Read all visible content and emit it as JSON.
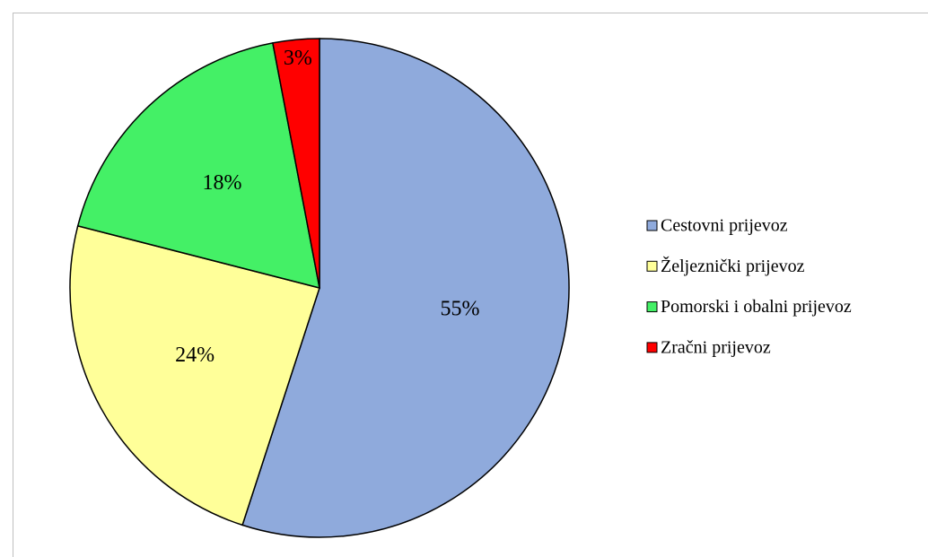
{
  "chart_data": {
    "type": "pie",
    "categories": [
      "Cestovni prijevoz",
      "Željeznički prijevoz",
      "Pomorski i obalni prijevoz",
      "Zračni prijevoz"
    ],
    "values": [
      55,
      24,
      18,
      3
    ],
    "value_labels": [
      "55%",
      "24%",
      "18%",
      "3%"
    ],
    "colors": [
      "#8faadc",
      "#ffff99",
      "#44f066",
      "#ff0000"
    ],
    "legend": "right"
  }
}
